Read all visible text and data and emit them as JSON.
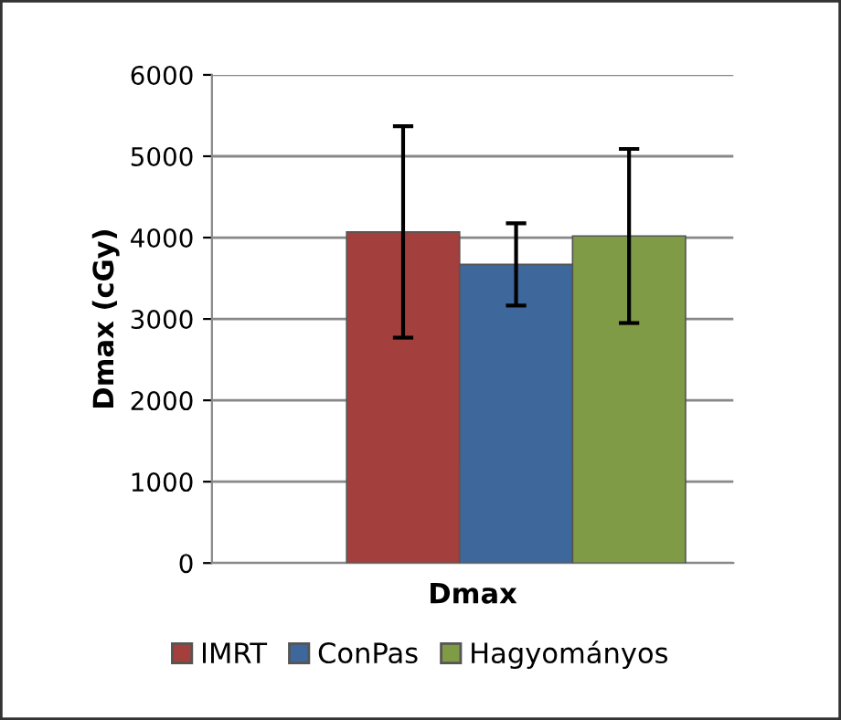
{
  "chart_data": {
    "type": "bar",
    "categories": [
      null
    ],
    "xlabel": "Dmax",
    "ylabel": "Dmax (cGy)",
    "series": [
      {
        "name": "IMRT",
        "color": "#a33f3d",
        "values": [
          4070
        ],
        "errors": [
          1300
        ]
      },
      {
        "name": "ConPas",
        "color": "#3e679b",
        "values": [
          3670
        ],
        "errors": [
          505
        ]
      },
      {
        "name": "Hagyományos",
        "color": "#7f9b45",
        "values": [
          4020
        ],
        "errors": [
          1070
        ]
      }
    ],
    "ylim": [
      0,
      6000
    ],
    "yticks": [
      0,
      1000,
      2000,
      3000,
      4000,
      5000,
      6000
    ],
    "grid": "y",
    "legend": "bottom"
  }
}
